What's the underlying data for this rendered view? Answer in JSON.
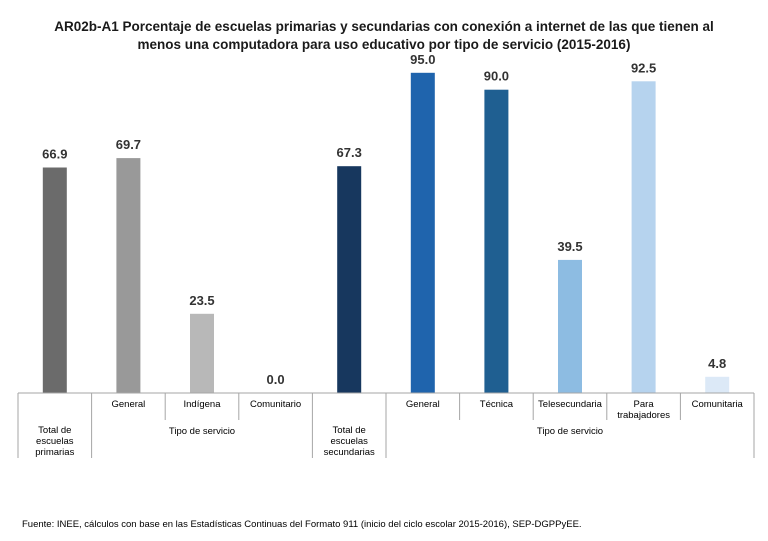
{
  "title": {
    "line1": "AR02b-A1 Porcentaje de escuelas primarias y secundarias con conexión a internet de las que tienen al",
    "line2": "menos una computadora para uso educativo por tipo de servicio (2015-2016)"
  },
  "source": "Fuente: INEE, cálculos con base en las Estadísticas Continuas del Formato 911 (inicio del ciclo escolar 2015-2016), SEP-DGPPyEE.",
  "chart_data": {
    "type": "bar",
    "title": "AR02b-A1 Porcentaje de escuelas primarias y secundarias con conexión a internet de las que tienen al menos una computadora para uso educativo por tipo de servicio (2015-2016)",
    "ylim": [
      0,
      100
    ],
    "grid": false,
    "legend": "none",
    "categories": [
      "Total de escuelas primarias",
      "General",
      "Indígena",
      "Comunitario",
      "Total de escuelas secundarias",
      "General",
      "Técnica",
      "Telesecundaria",
      "Para trabajadores",
      "Comunitaria"
    ],
    "values": [
      66.9,
      69.7,
      23.5,
      0.0,
      67.3,
      95.0,
      90.0,
      39.5,
      92.5,
      4.8
    ],
    "value_labels": [
      "66.9",
      "69.7",
      "23.5",
      "0.0",
      "67.3",
      "95.0",
      "90.0",
      "39.5",
      "92.5",
      "4.8"
    ],
    "colors": [
      "#6b6b6b",
      "#999999",
      "#b8b8b8",
      "#d0d0d0",
      "#17375e",
      "#1f64ad",
      "#1f5f91",
      "#8dbce2",
      "#b6d3ee",
      "#dce9f7"
    ],
    "category_label_lines": [
      [
        "Total de",
        "escuelas",
        "primarias"
      ],
      [
        "General"
      ],
      [
        "Indígena"
      ],
      [
        "Comunitario"
      ],
      [
        "Total de",
        "escuelas",
        "secundarias"
      ],
      [
        "General"
      ],
      [
        "Técnica"
      ],
      [
        "Telesecundaria"
      ],
      [
        "Para",
        "trabajadores"
      ],
      [
        "Comunitaria"
      ]
    ],
    "groups": [
      {
        "label": "Tipo de servicio",
        "from": 1,
        "to": 3
      },
      {
        "label": "Tipo de servicio",
        "from": 5,
        "to": 9
      }
    ]
  }
}
